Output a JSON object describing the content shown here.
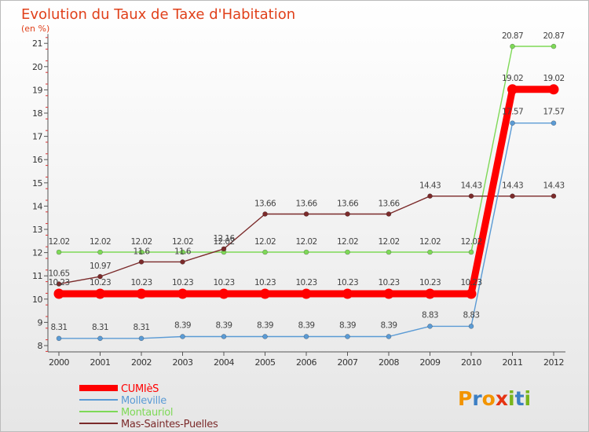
{
  "title": "Evolution du Taux de Taxe d'Habitation",
  "subtitle": "(en %)",
  "brand": {
    "letters": [
      "P",
      "r",
      "o",
      "x",
      "i",
      "t",
      "i"
    ],
    "colors": [
      "#f29400",
      "#3c7fc4",
      "#f29400",
      "#e63312",
      "#79b51c",
      "#3c7fc4",
      "#79b51c"
    ]
  },
  "chart_data": {
    "type": "line",
    "title": "Evolution du Taux de Taxe d'Habitation",
    "ylabel": "(en %)",
    "xlabel": "",
    "x": [
      "2000",
      "2001",
      "2002",
      "2003",
      "2004",
      "2005",
      "2006",
      "2007",
      "2008",
      "2009",
      "2010",
      "2011",
      "2012"
    ],
    "ylim": [
      8,
      21
    ],
    "yticks": [
      "8",
      "9",
      "10",
      "11",
      "12",
      "13",
      "14",
      "15",
      "16",
      "17",
      "18",
      "19",
      "20",
      "21"
    ],
    "grid": false,
    "legend": "bottom-left",
    "series": [
      {
        "name": "CUMIèS",
        "color": "#ff0000",
        "values": [
          10.23,
          10.23,
          10.23,
          10.23,
          10.23,
          10.23,
          10.23,
          10.23,
          10.23,
          10.23,
          10.23,
          19.02,
          19.02
        ],
        "labels": [
          "10.23",
          "10.23",
          "10.23",
          "10.23",
          "10.23",
          "10.23",
          "10.23",
          "10.23",
          "10.23",
          "10.23",
          "10.23",
          "19.02",
          "19.02"
        ]
      },
      {
        "name": "Molleville",
        "color": "#5b9bd5",
        "values": [
          8.31,
          8.31,
          8.31,
          8.39,
          8.39,
          8.39,
          8.39,
          8.39,
          8.39,
          8.83,
          8.83,
          17.57,
          17.57
        ],
        "labels": [
          "8.31",
          "8.31",
          "8.31",
          "8.39",
          "8.39",
          "8.39",
          "8.39",
          "8.39",
          "8.39",
          "8.83",
          "8.83",
          "17.57",
          "17.57"
        ]
      },
      {
        "name": "Montauriol",
        "color": "#7ed957",
        "values": [
          12.02,
          12.02,
          12.02,
          12.02,
          12.02,
          12.02,
          12.02,
          12.02,
          12.02,
          12.02,
          12.02,
          20.87,
          20.87
        ],
        "labels": [
          "12.02",
          "12.02",
          "12.02",
          "12.02",
          "12.02",
          "12.02",
          "12.02",
          "12.02",
          "12.02",
          "12.02",
          "12.02",
          "20.87",
          "20.87"
        ]
      },
      {
        "name": "Mas-Saintes-Puelles",
        "color": "#7b2a2a",
        "values": [
          10.65,
          10.97,
          11.6,
          11.6,
          12.16,
          13.66,
          13.66,
          13.66,
          13.66,
          14.43,
          14.43,
          14.43,
          14.43
        ],
        "labels": [
          "10.65",
          "10.97",
          "11.6",
          "11.6",
          "12.16",
          "13.66",
          "13.66",
          "13.66",
          "13.66",
          "14.43",
          "14.43",
          "14.43",
          "14.43"
        ]
      }
    ]
  }
}
